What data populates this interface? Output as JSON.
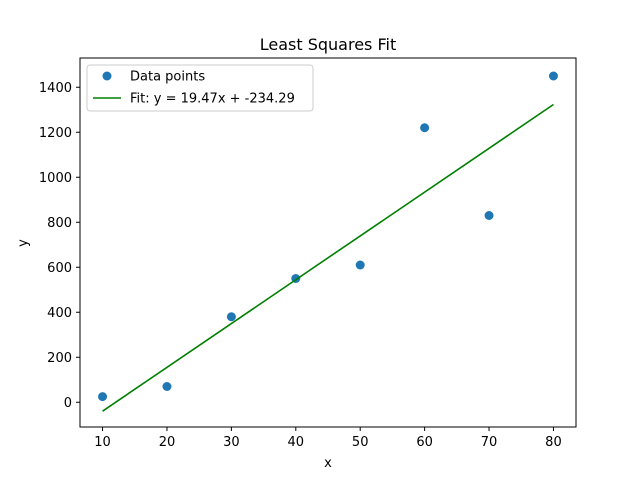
{
  "chart_data": {
    "type": "scatter",
    "title": "Least Squares Fit",
    "xlabel": "x",
    "ylabel": "y",
    "xlim": [
      6.5,
      83.5
    ],
    "ylim": [
      -110,
      1530
    ],
    "xticks": [
      10,
      20,
      30,
      40,
      50,
      60,
      70,
      80
    ],
    "yticks": [
      0,
      200,
      400,
      600,
      800,
      1000,
      1200,
      1400
    ],
    "grid": false,
    "legend": "upper-left",
    "series": [
      {
        "name": "Data points",
        "kind": "scatter",
        "color": "#1f77b4",
        "x": [
          10,
          20,
          30,
          40,
          50,
          60,
          70,
          80
        ],
        "y": [
          25,
          70,
          380,
          550,
          610,
          1220,
          830,
          1450
        ]
      },
      {
        "name": "Fit: y = 19.47x + -234.29",
        "kind": "line",
        "color": "#008000",
        "x": [
          10,
          80
        ],
        "y": [
          -39.6,
          1323.3
        ]
      }
    ]
  }
}
